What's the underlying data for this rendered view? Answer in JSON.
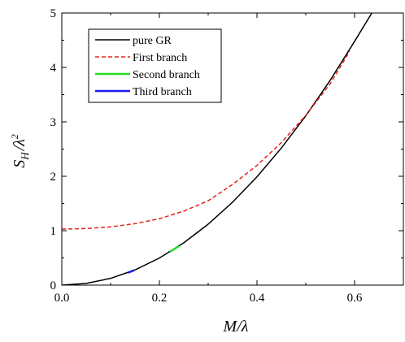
{
  "chart_data": {
    "type": "line",
    "xlabel": "M/λ",
    "ylabel_main": "S",
    "ylabel_sub": "H",
    "ylabel_rest": "/λ",
    "ylabel_sup": "2",
    "xlim": [
      0.0,
      0.7
    ],
    "ylim": [
      0,
      5
    ],
    "x_ticks": [
      0.0,
      0.2,
      0.4,
      0.6
    ],
    "x_tick_labels": [
      "0.0",
      "0.2",
      "0.4",
      "0.6"
    ],
    "y_ticks": [
      0,
      1,
      2,
      3,
      4,
      5
    ],
    "y_tick_labels": [
      "0",
      "1",
      "2",
      "3",
      "4",
      "5"
    ],
    "legend_placement": "top-left",
    "series": [
      {
        "name": "pure GR",
        "color": "#000000",
        "style": "solid",
        "x": [
          0.0,
          0.05,
          0.1,
          0.15,
          0.2,
          0.25,
          0.3,
          0.35,
          0.4,
          0.45,
          0.5,
          0.55,
          0.6,
          0.6354
        ],
        "y": [
          0.0,
          0.0311,
          0.1244,
          0.2799,
          0.4977,
          0.7776,
          1.1197,
          1.524,
          1.9906,
          2.5193,
          3.1102,
          3.7633,
          4.4786,
          5.0
        ]
      },
      {
        "name": "First branch",
        "color": "#e8201c",
        "style": "dashed",
        "x": [
          0.0,
          0.05,
          0.1,
          0.15,
          0.2,
          0.25,
          0.3,
          0.35,
          0.4,
          0.45,
          0.5,
          0.55,
          0.59
        ],
        "y": [
          1.03,
          1.04,
          1.07,
          1.13,
          1.22,
          1.36,
          1.55,
          1.85,
          2.2,
          2.62,
          3.12,
          3.7,
          4.3
        ]
      },
      {
        "name": "Second branch",
        "color": "#22dd22",
        "style": "solid",
        "x": [
          0.222,
          0.23,
          0.24
        ],
        "y": [
          0.615,
          0.659,
          0.717
        ]
      },
      {
        "name": "Third branch",
        "color": "#1a1aee",
        "style": "solid",
        "x": [
          0.136,
          0.142,
          0.148
        ],
        "y": [
          0.23,
          0.251,
          0.273
        ]
      }
    ]
  }
}
